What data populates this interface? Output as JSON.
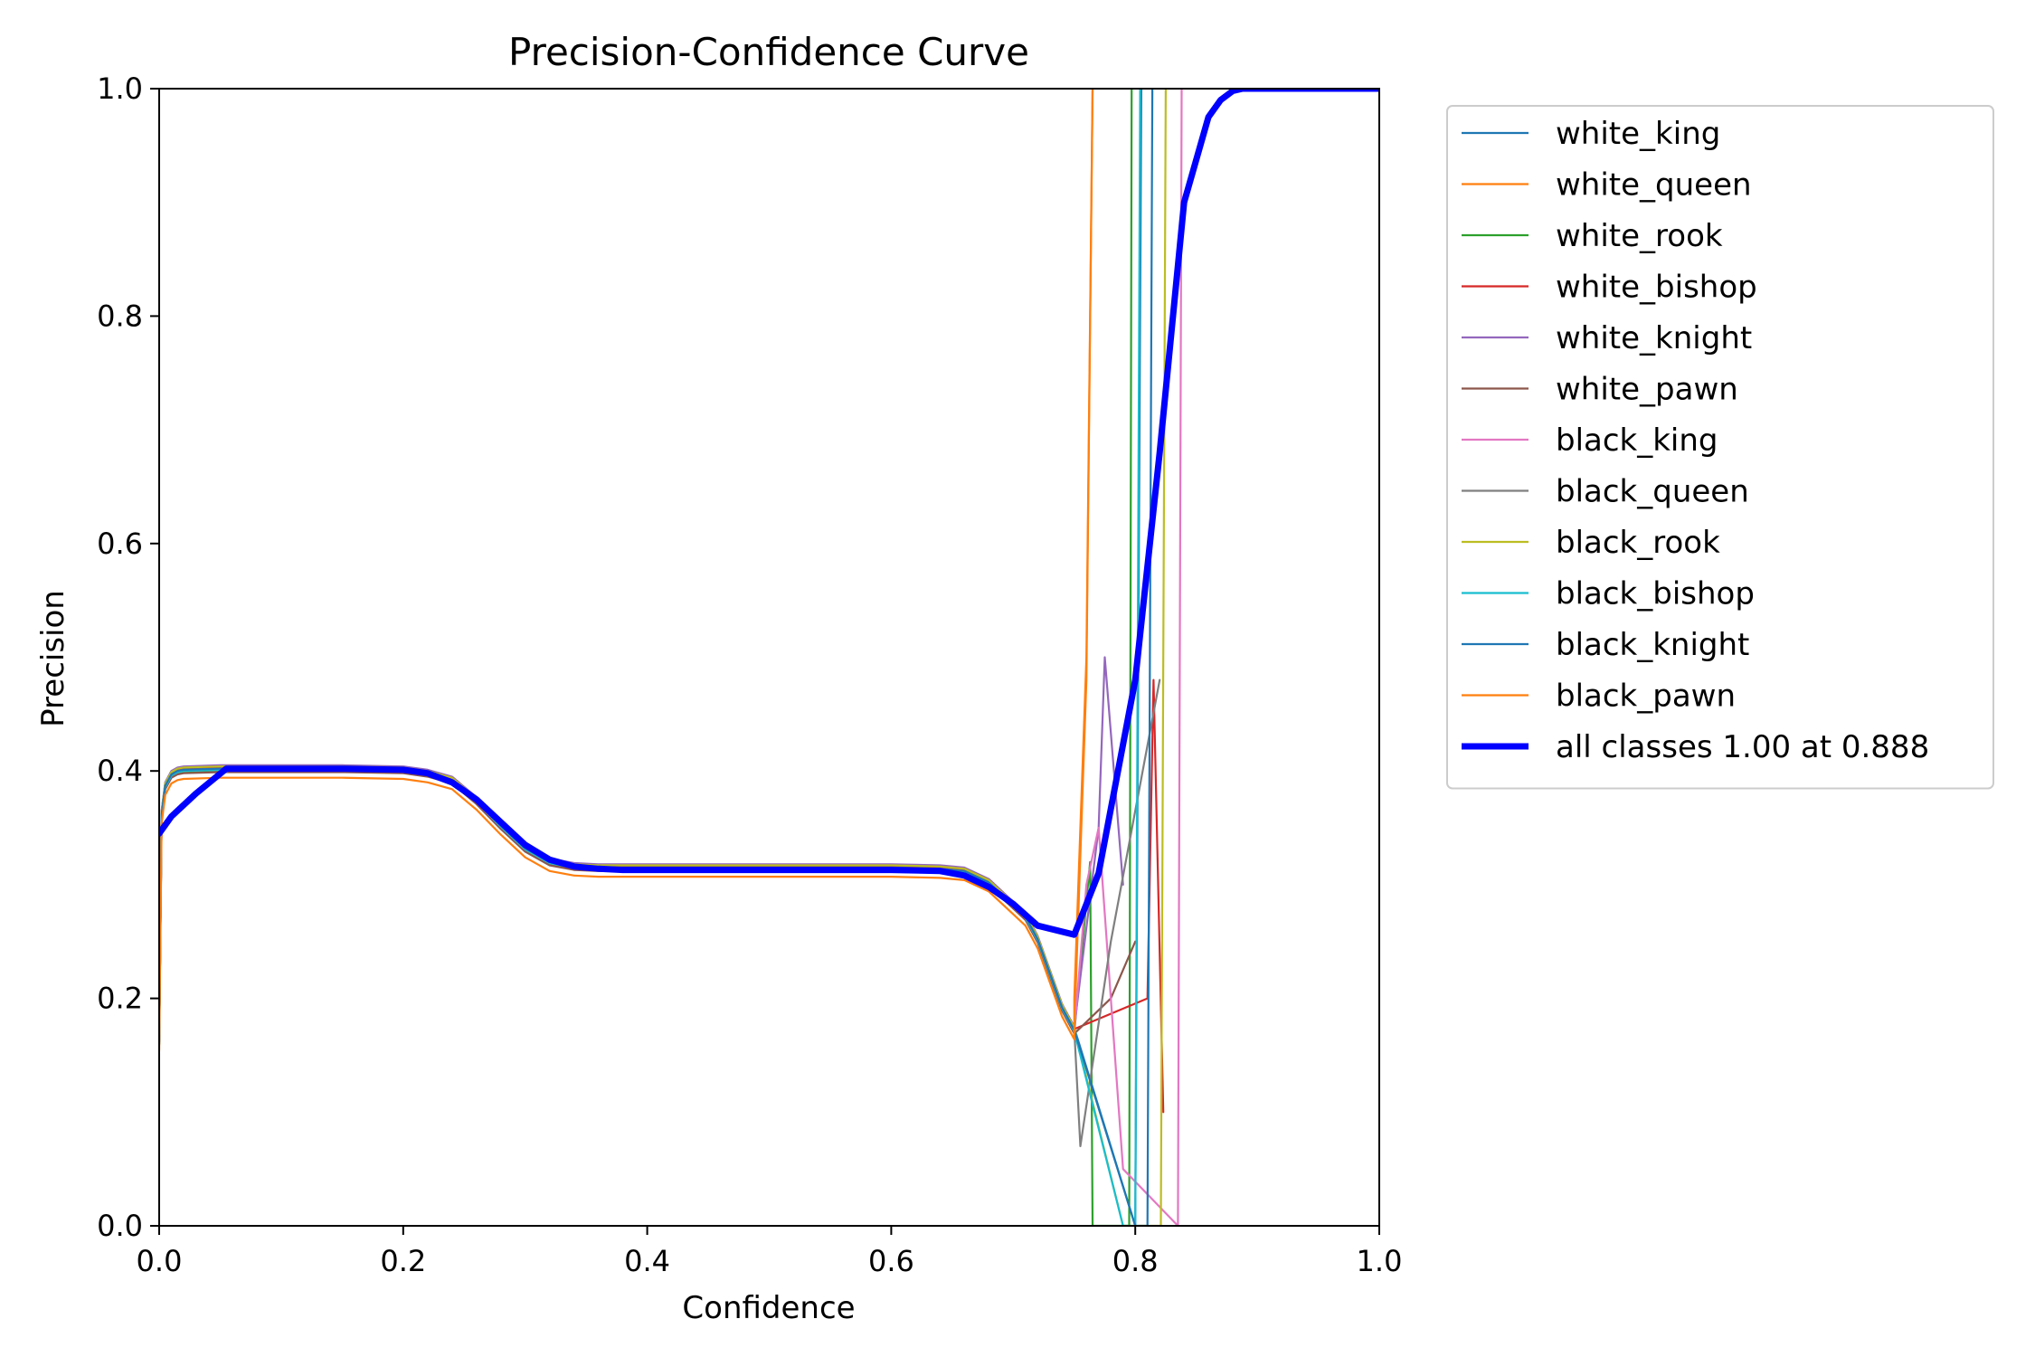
{
  "chart_data": {
    "type": "line",
    "title": "Precision-Confidence Curve",
    "xlabel": "Confidence",
    "ylabel": "Precision",
    "xlim": [
      0,
      1
    ],
    "ylim": [
      0,
      1
    ],
    "xticks": [
      0.0,
      0.2,
      0.4,
      0.6,
      0.8,
      1.0
    ],
    "yticks": [
      0.0,
      0.2,
      0.4,
      0.6,
      0.8,
      1.0
    ],
    "xtick_labels": [
      "0.0",
      "0.2",
      "0.4",
      "0.6",
      "0.8",
      "1.0"
    ],
    "ytick_labels": [
      "0.0",
      "0.2",
      "0.4",
      "0.6",
      "0.8",
      "1.0"
    ],
    "grid": false,
    "legend_position": "outside-upper-right",
    "series": [
      {
        "name": "white_king",
        "color": "#1f77b4",
        "width": 1,
        "offset": 0.004,
        "terminal": {
          "x": [
            0.8,
            0.805
          ],
          "y": [
            0.0,
            1.0
          ]
        }
      },
      {
        "name": "white_queen",
        "color": "#ff7f0e",
        "width": 1,
        "offset": 0.002,
        "terminal": {
          "x": [
            0.76,
            0.765
          ],
          "y": [
            0.48,
            1.0
          ]
        }
      },
      {
        "name": "white_rook",
        "color": "#2ca02c",
        "width": 1,
        "offset": 0.0,
        "terminal": {
          "x": [
            0.763,
            0.765,
            0.795,
            0.797
          ],
          "y": [
            0.32,
            0.0,
            0.0,
            1.0
          ]
        }
      },
      {
        "name": "white_bishop",
        "color": "#d62728",
        "width": 1,
        "offset": 0.003,
        "terminal": {
          "x": [
            0.81,
            0.815,
            0.823
          ],
          "y": [
            0.2,
            0.48,
            0.1
          ]
        }
      },
      {
        "name": "white_knight",
        "color": "#9467bd",
        "width": 1,
        "offset": 0.005,
        "terminal": {
          "x": [
            0.77,
            0.775,
            0.79
          ],
          "y": [
            0.35,
            0.5,
            0.3
          ]
        }
      },
      {
        "name": "white_pawn",
        "color": "#8c564b",
        "width": 1,
        "offset": -0.001,
        "terminal": {
          "x": [
            0.78,
            0.8
          ],
          "y": [
            0.2,
            0.25
          ]
        }
      },
      {
        "name": "black_king",
        "color": "#e377c2",
        "width": 1,
        "offset": 0.001,
        "terminal": {
          "x": [
            0.76,
            0.77,
            0.79,
            0.835,
            0.838
          ],
          "y": [
            0.3,
            0.35,
            0.05,
            0.0,
            1.0
          ]
        }
      },
      {
        "name": "black_queen",
        "color": "#7f7f7f",
        "width": 1,
        "offset": 0.002,
        "terminal": {
          "x": [
            0.755,
            0.78,
            0.82
          ],
          "y": [
            0.07,
            0.25,
            0.48
          ]
        }
      },
      {
        "name": "black_rook",
        "color": "#bcbd22",
        "width": 1,
        "offset": 0.004,
        "terminal": {
          "x": [
            0.79,
            0.821,
            0.825
          ],
          "y": [
            0.0,
            0.0,
            1.0
          ]
        }
      },
      {
        "name": "black_bishop",
        "color": "#17becf",
        "width": 1,
        "offset": 0.001,
        "terminal": {
          "x": [
            0.79,
            0.8,
            0.804
          ],
          "y": [
            0.0,
            0.0,
            1.0
          ]
        }
      },
      {
        "name": "black_knight",
        "color": "#1f77b4",
        "width": 1,
        "offset": 0.002,
        "terminal": {
          "x": [
            0.8,
            0.81,
            0.814
          ],
          "y": [
            0.0,
            0.0,
            1.0
          ]
        }
      },
      {
        "name": "black_pawn",
        "color": "#ff7f0e",
        "width": 1,
        "offset": -0.006,
        "terminal": {
          "x": [
            0.75,
            0.76,
            0.765
          ],
          "y": [
            0.2,
            0.5,
            1.0
          ]
        }
      },
      {
        "name": "all classes 1.00 at 0.888",
        "color": "#0000ff",
        "width": 3,
        "x": [
          0.0,
          0.01,
          0.03,
          0.055,
          0.1,
          0.15,
          0.2,
          0.22,
          0.24,
          0.26,
          0.28,
          0.3,
          0.32,
          0.34,
          0.36,
          0.38,
          0.4,
          0.5,
          0.6,
          0.64,
          0.66,
          0.68,
          0.7,
          0.72,
          0.75,
          0.77,
          0.8,
          0.82,
          0.84,
          0.86,
          0.87,
          0.88,
          0.888,
          0.92,
          1.0
        ],
        "y": [
          0.345,
          0.36,
          0.38,
          0.402,
          0.402,
          0.402,
          0.401,
          0.398,
          0.39,
          0.375,
          0.355,
          0.335,
          0.322,
          0.316,
          0.314,
          0.313,
          0.313,
          0.313,
          0.313,
          0.312,
          0.308,
          0.298,
          0.283,
          0.264,
          0.256,
          0.31,
          0.48,
          0.68,
          0.9,
          0.975,
          0.99,
          0.998,
          1.0,
          1.0,
          1.0
        ]
      }
    ],
    "class_base": {
      "x": [
        0.0,
        0.002,
        0.005,
        0.01,
        0.015,
        0.02,
        0.05,
        0.1,
        0.15,
        0.2,
        0.22,
        0.24,
        0.26,
        0.28,
        0.3,
        0.32,
        0.34,
        0.36,
        0.38,
        0.4,
        0.5,
        0.6,
        0.64,
        0.66,
        0.68,
        0.7,
        0.71,
        0.72,
        0.73,
        0.74,
        0.75
      ],
      "y": [
        0.16,
        0.36,
        0.385,
        0.395,
        0.398,
        0.399,
        0.4,
        0.4,
        0.4,
        0.399,
        0.396,
        0.39,
        0.372,
        0.35,
        0.33,
        0.318,
        0.314,
        0.313,
        0.313,
        0.313,
        0.313,
        0.313,
        0.312,
        0.31,
        0.3,
        0.28,
        0.27,
        0.25,
        0.22,
        0.19,
        0.17
      ]
    }
  }
}
